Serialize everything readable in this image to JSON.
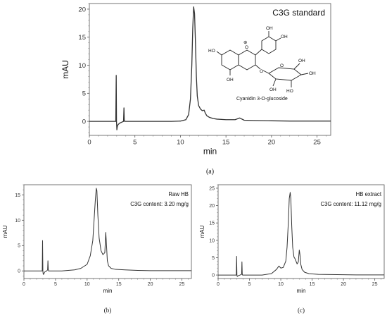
{
  "chart_data": [
    {
      "type": "line",
      "panel_caption": "(a)",
      "annotation": "C3G standard",
      "inset_label": "Cyanidin 3-O-glucoside",
      "xlabel": "min",
      "ylabel": "mAU",
      "xlim": [
        0,
        26.5
      ],
      "ylim": [
        -2.5,
        21
      ],
      "xticks": [
        0,
        5,
        10,
        15,
        20,
        25
      ],
      "yticks": [
        0,
        5,
        10,
        15,
        20
      ],
      "series": [
        {
          "x": [
            0,
            1,
            2,
            2.9,
            2.95,
            2.98,
            3.02,
            3.05,
            3.1,
            3.2,
            3.35,
            3.55,
            3.75,
            3.8,
            3.83,
            3.86,
            3.9,
            4.0,
            4.3,
            5,
            6,
            7,
            8,
            9,
            10,
            10.6,
            10.9,
            11.1,
            11.25,
            11.35,
            11.45,
            11.55,
            11.65,
            11.75,
            11.85,
            12.0,
            12.2,
            12.4,
            12.6,
            12.75,
            12.9,
            13.2,
            13.6,
            14,
            15,
            16,
            16.5,
            17,
            18,
            20,
            22,
            24,
            26.5
          ],
          "y": [
            0,
            0,
            0,
            0,
            8.2,
            0,
            -1.5,
            -1.1,
            -0.7,
            -0.5,
            -0.3,
            -0.15,
            0,
            2.4,
            0.3,
            0,
            0,
            0,
            0,
            0,
            0,
            0,
            0,
            0,
            0.05,
            0.3,
            1.2,
            4,
            10,
            16.5,
            20.4,
            19.2,
            14,
            8,
            4.5,
            2.8,
            2.2,
            1.9,
            2.0,
            1.4,
            1.0,
            0.7,
            0.5,
            0.4,
            0.3,
            0.3,
            0.6,
            0.2,
            0.15,
            0.1,
            0.05,
            0.05,
            0.05
          ]
        }
      ]
    },
    {
      "type": "line",
      "panel_caption": "(b)",
      "annotation": "Raw HB",
      "annotation2": "C3G content: 3.20 mg/g",
      "xlabel": "min",
      "ylabel": "mAU",
      "xlim": [
        0,
        26.5
      ],
      "ylim": [
        -1.5,
        17
      ],
      "xticks": [
        0,
        5,
        10,
        15,
        20,
        25
      ],
      "yticks": [
        0,
        5,
        10,
        15
      ],
      "series": [
        {
          "x": [
            0,
            2,
            2.9,
            2.95,
            3.0,
            3.05,
            3.1,
            3.3,
            3.6,
            3.75,
            3.8,
            3.85,
            3.9,
            4.5,
            6,
            8,
            9,
            10,
            10.5,
            10.9,
            11.1,
            11.3,
            11.45,
            11.55,
            11.7,
            11.9,
            12.2,
            12.5,
            12.8,
            12.95,
            13.05,
            13.2,
            13.4,
            13.8,
            14.5,
            16,
            18,
            20,
            22,
            24,
            26.5
          ],
          "y": [
            0,
            0,
            0,
            6.0,
            0,
            -0.6,
            -0.7,
            -0.2,
            0,
            0.2,
            2.0,
            0.3,
            0,
            0,
            0,
            0.2,
            0.5,
            1.3,
            3.0,
            6.0,
            10,
            14,
            16.3,
            15.8,
            11,
            6.5,
            4.0,
            3.2,
            3.6,
            7.6,
            5.5,
            2.0,
            1.0,
            0.5,
            0.3,
            0.2,
            0.1,
            0.05,
            0.05,
            0.05,
            0.05
          ]
        }
      ]
    },
    {
      "type": "line",
      "panel_caption": "(c)",
      "annotation": "HB extract",
      "annotation2": "C3G content: 11.12 mg/g",
      "xlabel": "min",
      "ylabel": "mAU",
      "xlim": [
        0,
        26.5
      ],
      "ylim": [
        -1,
        26
      ],
      "xticks": [
        0,
        5,
        10,
        15,
        20,
        25
      ],
      "yticks": [
        0,
        5,
        10,
        15,
        20,
        25
      ],
      "series": [
        {
          "x": [
            0,
            2,
            2.9,
            2.95,
            3.0,
            3.05,
            3.2,
            3.5,
            3.75,
            3.8,
            3.85,
            3.9,
            5,
            7,
            8.5,
            9.3,
            9.7,
            10.0,
            10.4,
            10.8,
            11.0,
            11.2,
            11.35,
            11.5,
            11.6,
            11.75,
            11.9,
            12.1,
            12.3,
            12.6,
            12.8,
            12.95,
            13.05,
            13.2,
            13.4,
            13.8,
            14.5,
            16,
            18,
            20,
            22,
            24,
            26.5
          ],
          "y": [
            0,
            0,
            0,
            5.4,
            0,
            -0.4,
            -0.2,
            0,
            0.2,
            3.8,
            0.3,
            0,
            0,
            0,
            0.4,
            1.6,
            2.6,
            2.0,
            2.2,
            4.0,
            8,
            15,
            22,
            23.8,
            22,
            14,
            8,
            5.2,
            4.6,
            3.2,
            3.8,
            7.2,
            6.0,
            3.0,
            1.6,
            0.8,
            0.4,
            0.2,
            0.15,
            0.1,
            0.05,
            0.05,
            0.05
          ]
        }
      ]
    }
  ]
}
